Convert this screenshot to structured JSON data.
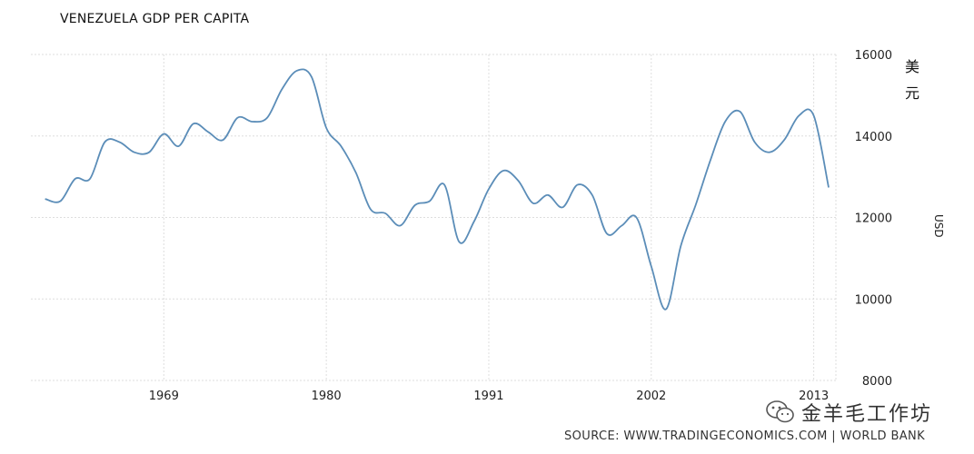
{
  "chart_data": {
    "type": "line",
    "title": "VENEZUELA GDP PER CAPITA",
    "ylabel": "USD",
    "unit_cn": [
      "美",
      "元"
    ],
    "xlim": [
      1960,
      2014.5
    ],
    "ylim": [
      8000,
      16000
    ],
    "x_ticks": [
      1969,
      1980,
      1991,
      2002,
      2013
    ],
    "y_ticks": [
      8000,
      10000,
      12000,
      14000,
      16000
    ],
    "grid": true,
    "series": [
      {
        "color": "#5b8db8",
        "x": [
          1961,
          1962,
          1963,
          1964,
          1965,
          1966,
          1967,
          1968,
          1969,
          1970,
          1971,
          1972,
          1973,
          1974,
          1975,
          1976,
          1977,
          1978,
          1979,
          1980,
          1981,
          1982,
          1983,
          1984,
          1985,
          1986,
          1987,
          1988,
          1989,
          1990,
          1991,
          1992,
          1993,
          1994,
          1995,
          1996,
          1997,
          1998,
          1999,
          2000,
          2001,
          2002,
          2003,
          2004,
          2005,
          2006,
          2007,
          2008,
          2009,
          2010,
          2011,
          2012,
          2013,
          2014
        ],
        "y": [
          12450,
          12400,
          12950,
          12950,
          13850,
          13850,
          13600,
          13600,
          14050,
          13750,
          14300,
          14100,
          13900,
          14450,
          14350,
          14450,
          15150,
          15600,
          15450,
          14200,
          13750,
          13100,
          12200,
          12100,
          11800,
          12300,
          12400,
          12800,
          11400,
          11900,
          12700,
          13150,
          12900,
          12350,
          12550,
          12250,
          12800,
          12550,
          11600,
          11800,
          12000,
          10800,
          9750,
          11300,
          12300,
          13400,
          14350,
          14600,
          13850,
          13600,
          13900,
          14500,
          14500,
          12750
        ]
      }
    ]
  },
  "watermark": {
    "text": "金羊毛工作坊",
    "icon": "wechat-icon"
  },
  "source_text": "SOURCE: WWW.TRADINGECONOMICS.COM | WORLD BANK"
}
